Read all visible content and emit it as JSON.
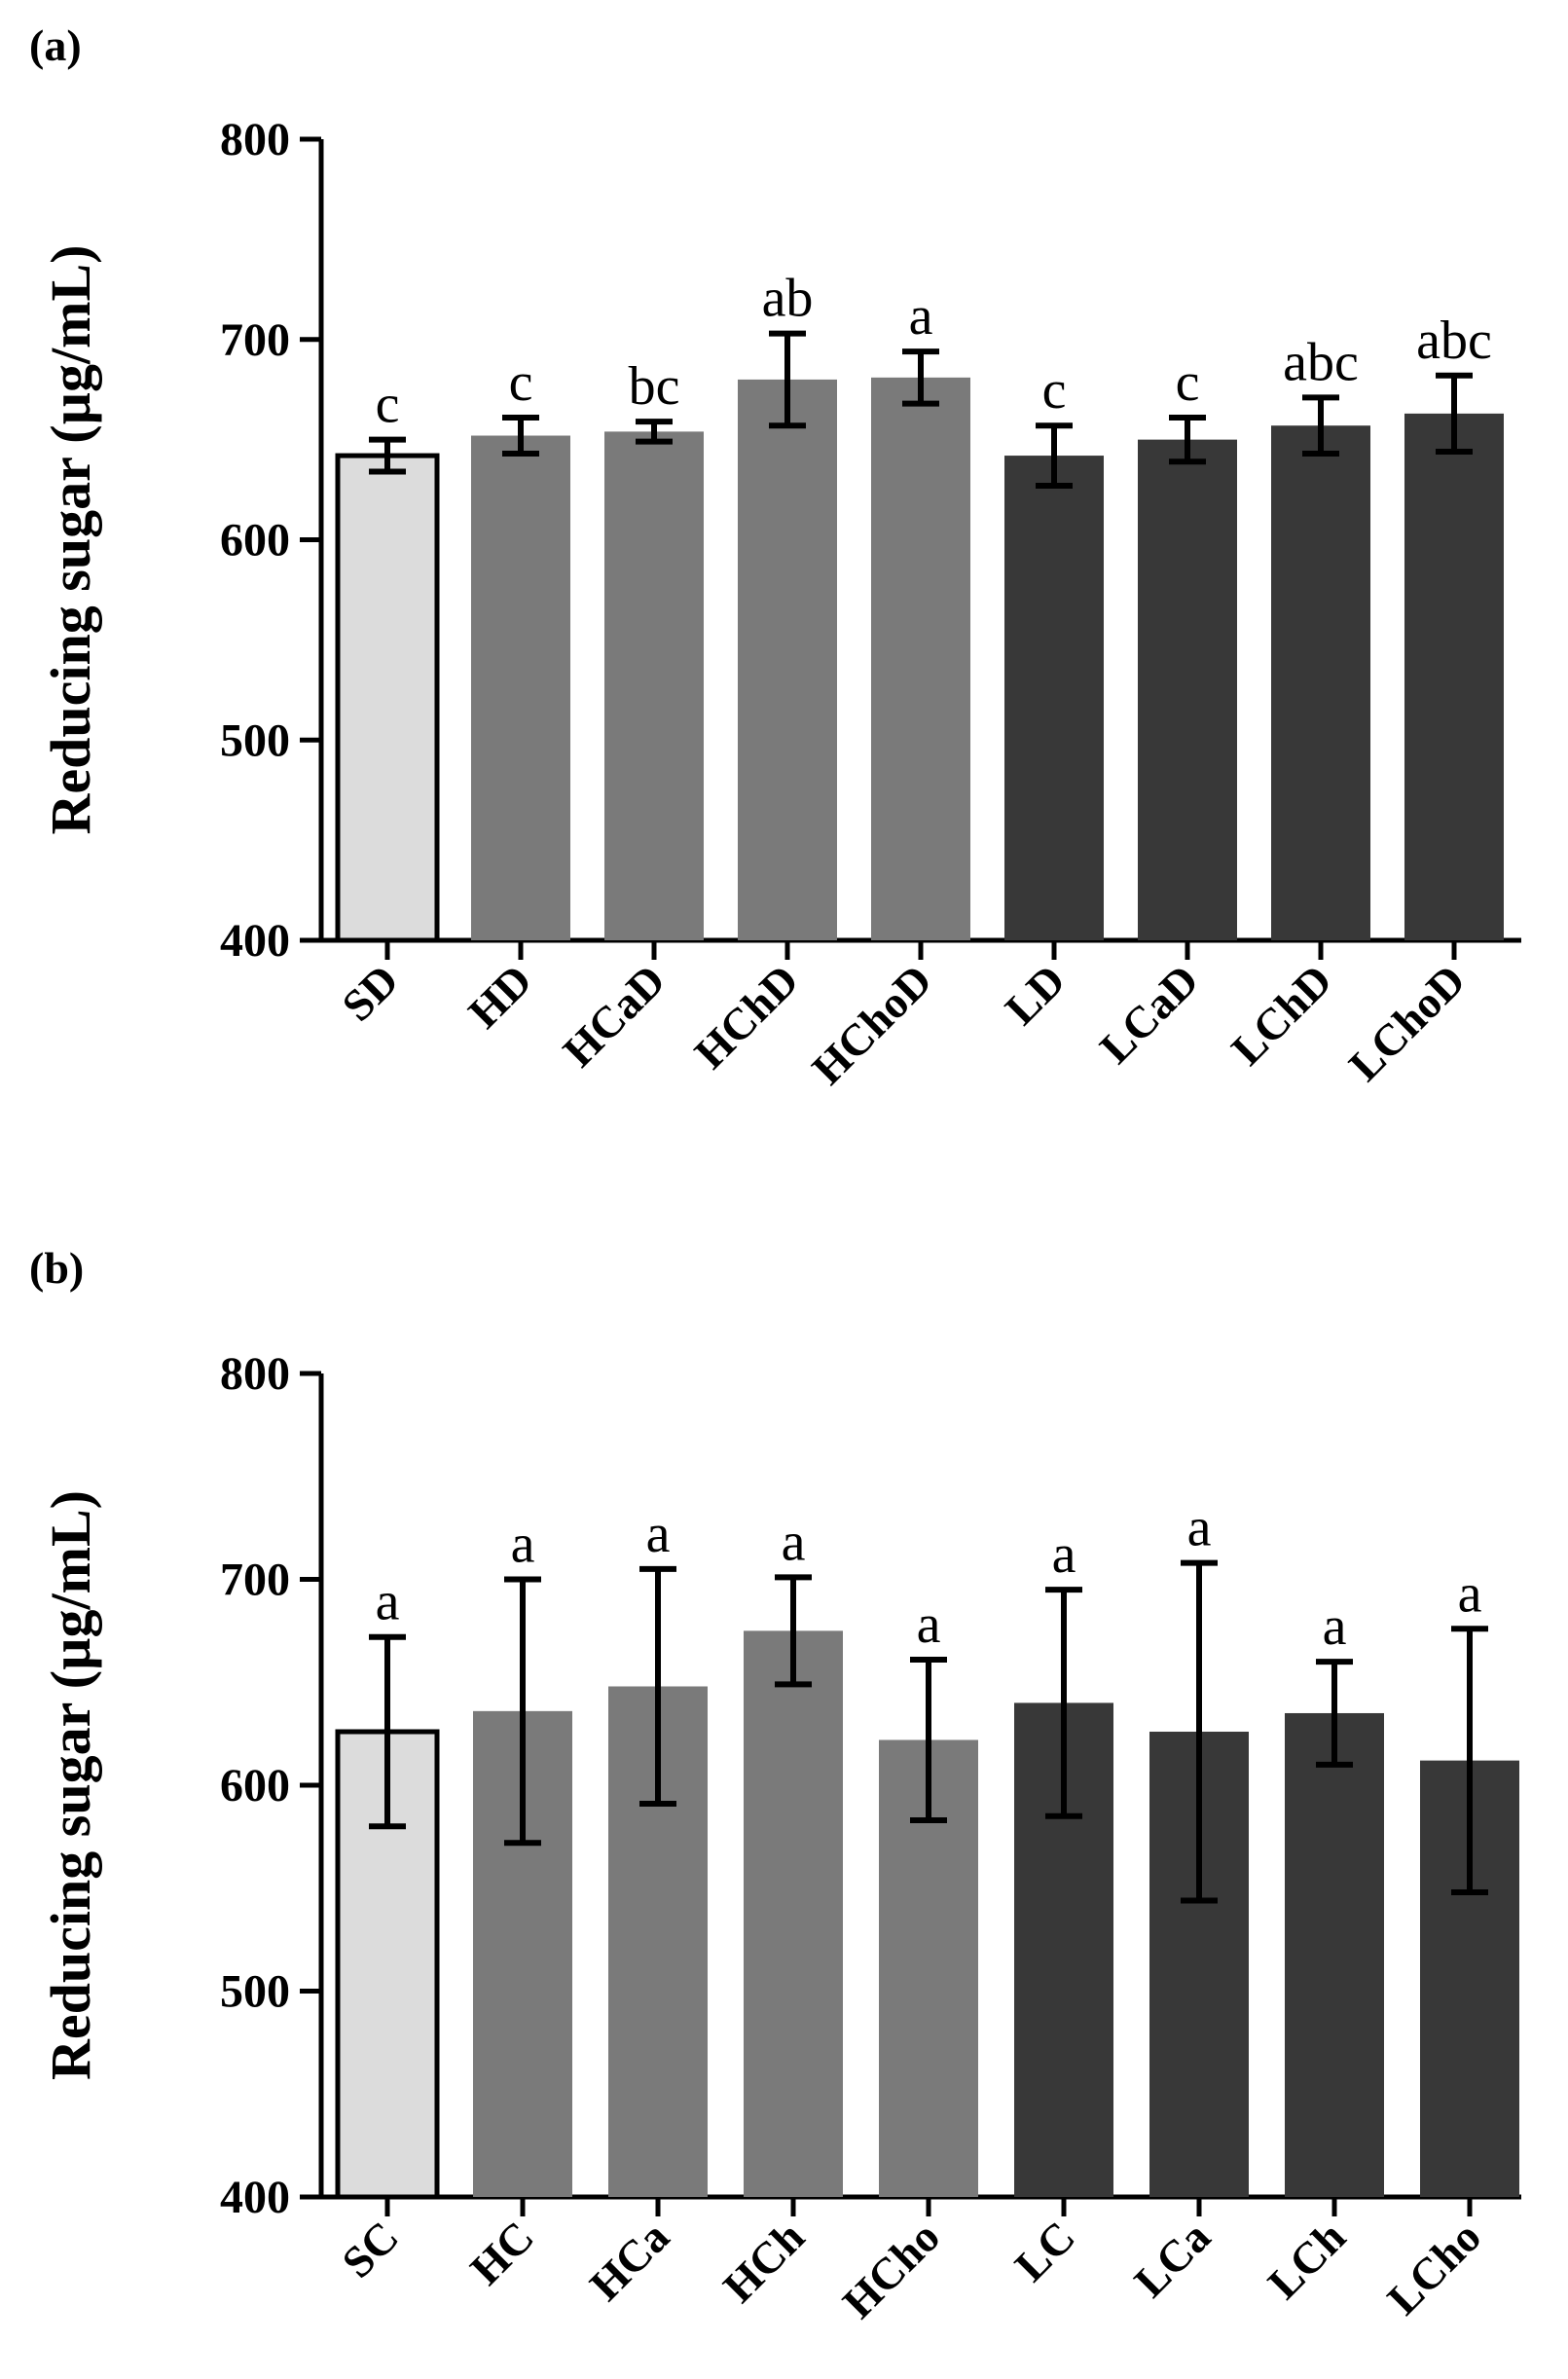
{
  "chart_data": [
    {
      "type": "bar",
      "panel_label": "(a)",
      "ylabel": "Reducing sugar (µg/mL)",
      "xlabel": "",
      "ylim": [
        400,
        800
      ],
      "yticks": [
        400,
        500,
        600,
        700,
        800
      ],
      "categories": [
        "SD",
        "HD",
        "HCaD",
        "HChD",
        "HChoD",
        "LD",
        "LCaD",
        "LChD",
        "LChoD"
      ],
      "values": [
        642,
        652,
        654,
        680,
        681,
        642,
        650,
        657,
        663
      ],
      "errors": [
        8,
        9,
        5,
        23,
        13,
        15,
        11,
        14,
        19
      ],
      "significance": [
        "c",
        "c",
        "bc",
        "ab",
        "a",
        "c",
        "c",
        "abc",
        "abc"
      ],
      "bar_colors": [
        "#dcdcdc",
        "#7a7a7a",
        "#7a7a7a",
        "#7a7a7a",
        "#7a7a7a",
        "#383838",
        "#383838",
        "#383838",
        "#383838"
      ]
    },
    {
      "type": "bar",
      "panel_label": "(b)",
      "ylabel": "Reducing sugar (µg/mL)",
      "xlabel": "",
      "ylim": [
        400,
        800
      ],
      "yticks": [
        400,
        500,
        600,
        700,
        800
      ],
      "categories": [
        "SC",
        "HC",
        "HCa",
        "HCh",
        "HCho",
        "LC",
        "LCa",
        "LCh",
        "LCho"
      ],
      "values": [
        626,
        636,
        648,
        675,
        622,
        640,
        626,
        635,
        612
      ],
      "errors": [
        46,
        64,
        57,
        26,
        39,
        55,
        82,
        25,
        64
      ],
      "significance": [
        "a",
        "a",
        "a",
        "a",
        "a",
        "a",
        "a",
        "a",
        "a"
      ],
      "bar_colors": [
        "#dcdcdc",
        "#7a7a7a",
        "#7a7a7a",
        "#7a7a7a",
        "#7a7a7a",
        "#383838",
        "#383838",
        "#383838",
        "#383838"
      ]
    }
  ]
}
